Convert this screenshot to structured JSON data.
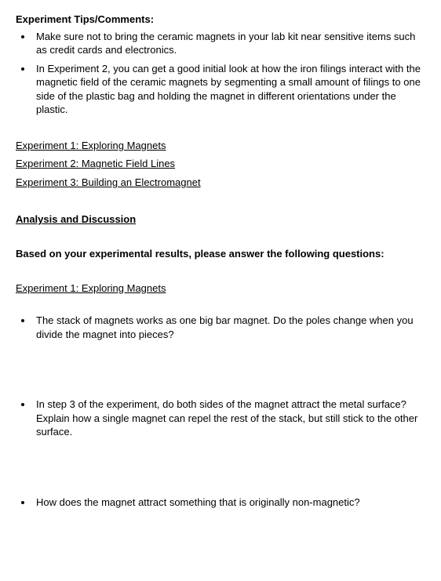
{
  "tips": {
    "heading": "Experiment Tips/Comments",
    "items": [
      "Make sure not to bring the ceramic magnets in your lab kit near sensitive items such as credit cards and electronics.",
      "In Experiment 2, you can get a good initial look at how the iron filings interact with the magnetic field of the ceramic magnets by segmenting a small amount of filings to one side of the plastic bag and holding the magnet in different orientations under the plastic."
    ]
  },
  "experiments": {
    "exp1": "Experiment 1: Exploring Magnets",
    "exp2": "Experiment 2: Magnetic Field Lines",
    "exp3": "Experiment 3: Building an Electromagnet"
  },
  "analysis": {
    "heading": "Analysis and Discussion",
    "prompt": "Based on your experimental results, please answer the following questions:",
    "exp1_heading": "Experiment 1: Exploring Magnets",
    "questions": [
      "The stack of magnets works as one big bar magnet. Do the poles change when you divide the magnet into pieces?",
      "In step 3 of the experiment, do both sides of the magnet attract the metal surface? Explain how a single magnet can repel the rest of the stack, but still stick to the other surface.",
      "How does the magnet attract something that is originally non-magnetic?"
    ]
  }
}
